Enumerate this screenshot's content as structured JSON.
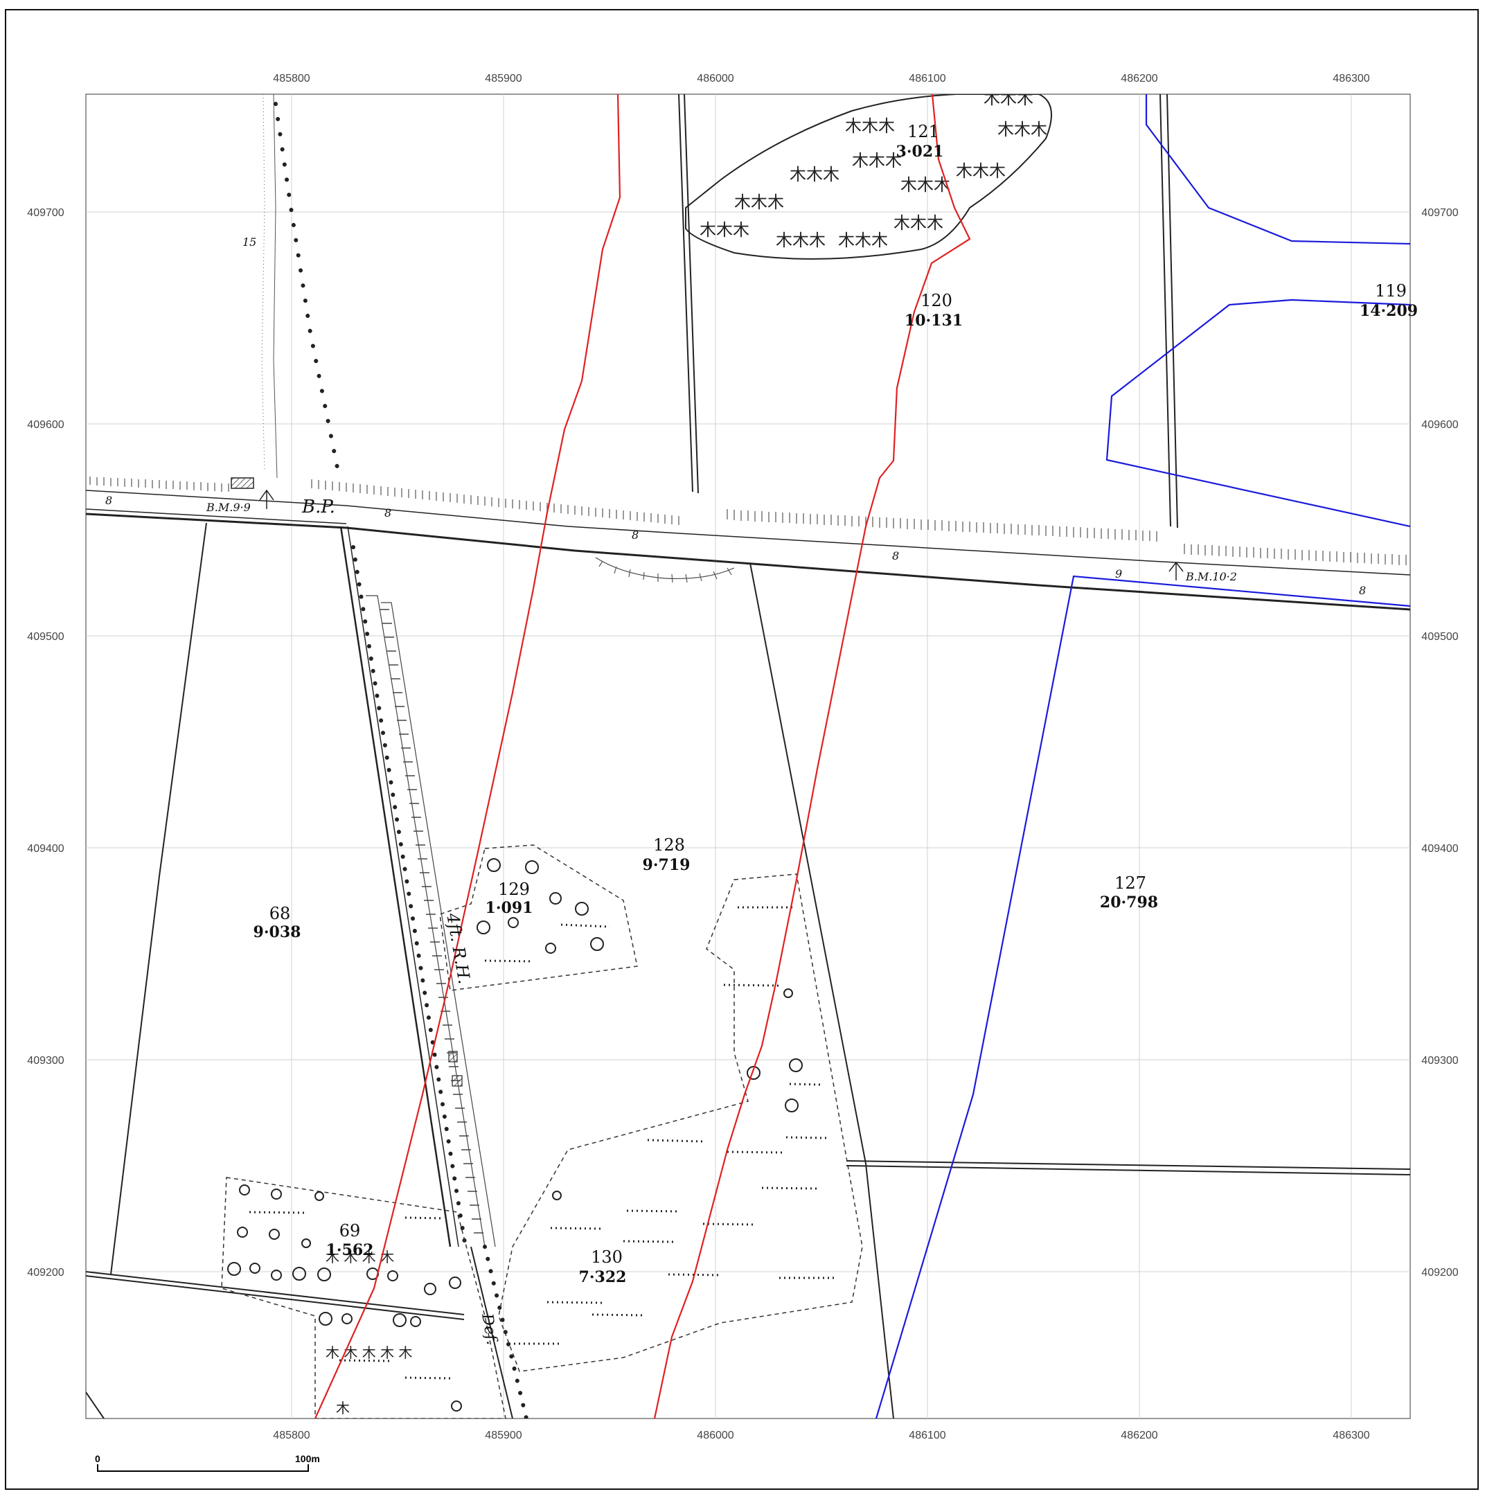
{
  "map": {
    "x_ticks": [
      "485800",
      "485900",
      "486000",
      "486100",
      "486200",
      "486300"
    ],
    "y_ticks": [
      "409700",
      "409600",
      "409500",
      "409400",
      "409300",
      "409200"
    ],
    "parcels": [
      {
        "number": "121",
        "area": "3·021"
      },
      {
        "number": "120",
        "area": "10·131"
      },
      {
        "number": "119",
        "area": "14·209"
      },
      {
        "number": "128",
        "area": "9·719"
      },
      {
        "number": "129",
        "area": "1·091"
      },
      {
        "number": "127",
        "area": "20·798"
      },
      {
        "number": "68",
        "area": "9·038"
      },
      {
        "number": "69",
        "area": "1·562"
      },
      {
        "number": "130",
        "area": "7·322"
      }
    ],
    "annotations": {
      "bm_left": "B.M.9·9",
      "bm_right": "B.M.10·2",
      "bp": "B.P.",
      "spot_8": "8",
      "spot_9": "9",
      "spot_15": "15",
      "road_label": "4ft. R.H.",
      "def_label": "Def."
    },
    "scale_bar": {
      "start": "0",
      "end": "100m"
    },
    "colors": {
      "boundary_red": "#e02020",
      "boundary_blue": "#1a1adc",
      "base_ink": "#222222",
      "grid": "#cccccc"
    }
  }
}
